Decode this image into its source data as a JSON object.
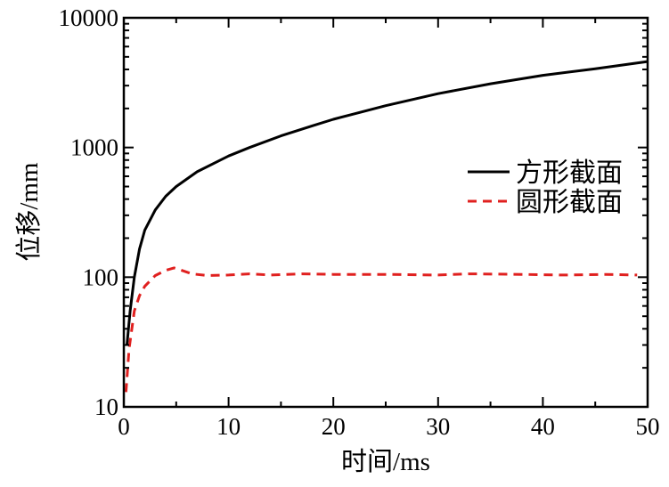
{
  "chart_data": {
    "type": "line",
    "title": "",
    "xlabel": "时间/ms",
    "ylabel": "位移/mm",
    "xlim": [
      0,
      50
    ],
    "ylim": [
      10,
      10000
    ],
    "yscale": "log",
    "x_ticks": [
      0,
      10,
      20,
      30,
      40,
      50
    ],
    "x_tick_labels": [
      "0",
      "10",
      "20",
      "30",
      "40",
      "50"
    ],
    "y_ticks": [
      10,
      100,
      1000,
      10000
    ],
    "y_tick_labels": [
      "10",
      "100",
      "1000",
      "10000"
    ],
    "grid": false,
    "legend_position": "right",
    "series": [
      {
        "name": "方形截面",
        "color": "#000000",
        "line_style": "solid",
        "x": [
          0.3,
          0.6,
          1.0,
          1.5,
          2.0,
          3.0,
          4.0,
          5.0,
          7.0,
          10.0,
          12.0,
          15.0,
          18.0,
          20.0,
          25.0,
          30.0,
          35.0,
          40.0,
          45.0,
          50.0
        ],
        "y": [
          30,
          55,
          100,
          165,
          230,
          330,
          420,
          500,
          650,
          860,
          1000,
          1230,
          1470,
          1650,
          2100,
          2600,
          3100,
          3600,
          4050,
          4600
        ]
      },
      {
        "name": "圆形截面",
        "color": "#e0201f",
        "line_style": "dashed",
        "x": [
          0.2,
          0.5,
          1.0,
          1.5,
          2.0,
          3.0,
          4.0,
          4.8,
          5.5,
          6.5,
          8.0,
          10.0,
          12.0,
          14.0,
          17.0,
          20.0,
          25.0,
          30.0,
          33.0,
          38.0,
          42.0,
          46.0,
          49.0
        ],
        "y": [
          13,
          28,
          55,
          72,
          85,
          103,
          113,
          118,
          113,
          106,
          103,
          104,
          106,
          104,
          106,
          105,
          105,
          104,
          106,
          105,
          104,
          105,
          104
        ]
      }
    ]
  }
}
